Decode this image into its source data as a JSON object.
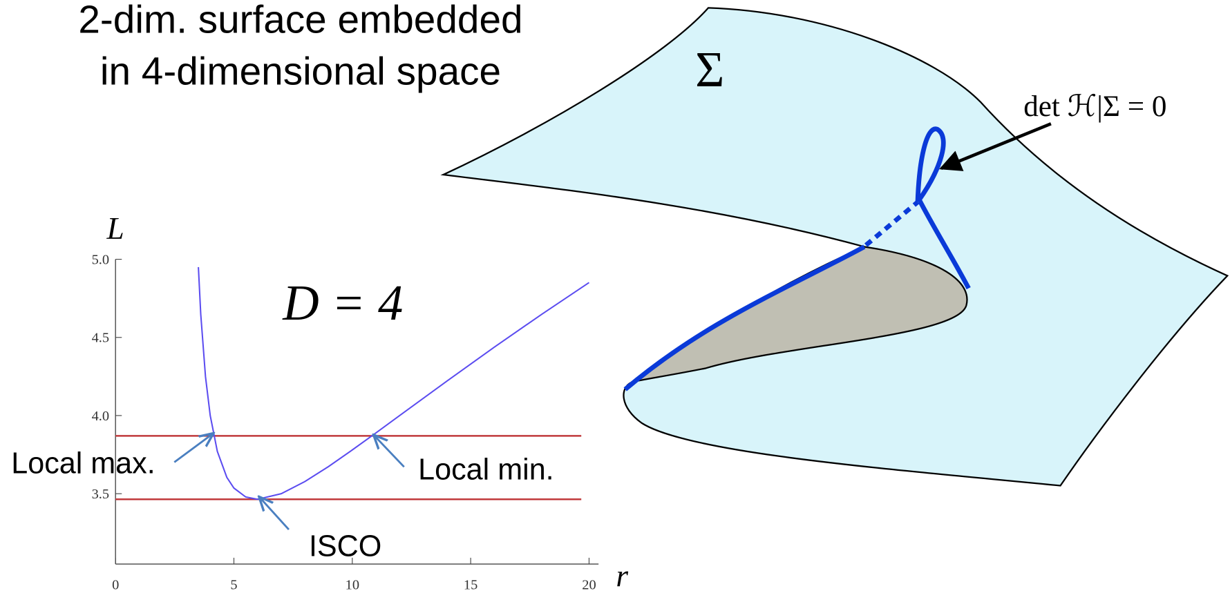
{
  "diagram": {
    "title_lines": [
      "2-dim. surface embedded",
      "in 4-dimensional space"
    ],
    "surface_label": "Σ",
    "curve_label": "det ℋ|Σ = 0"
  },
  "chart_data": {
    "type": "line",
    "x_label": "r",
    "y_label": "L",
    "annotation": "D = 4",
    "x": [
      3.5,
      3.6,
      3.8,
      4,
      4.3,
      4.7,
      5,
      5.5,
      6,
      7,
      8,
      9,
      10,
      11,
      12,
      14,
      16,
      18,
      20
    ],
    "series": [
      {
        "color": "#5b4cf0",
        "values": [
          4.95,
          4.648,
          4.249,
          4.0,
          3.771,
          3.605,
          3.536,
          3.479,
          3.464,
          3.5,
          3.578,
          3.674,
          3.78,
          3.889,
          4.0,
          4.221,
          4.438,
          4.648,
          4.851
        ]
      }
    ],
    "hlines": [
      3.87,
      3.464
    ],
    "hline_color": "#c0393b",
    "point_labels": [
      "Local max.",
      "Local min.",
      "ISCO"
    ],
    "xlim": [
      0,
      20.4
    ],
    "ylim": [
      3.05,
      5.0
    ],
    "xticks": [
      0,
      5,
      10,
      15,
      20
    ],
    "yticks": [
      3.5,
      {
        "value": 4.0,
        "label": "4.0"
      },
      4.5,
      {
        "value": 5.0,
        "label": "5.0"
      }
    ]
  }
}
